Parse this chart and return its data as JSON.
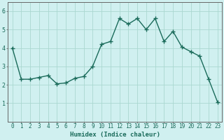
{
  "xlabel": "Humidex (Indice chaleur)",
  "x": [
    0,
    1,
    2,
    3,
    4,
    5,
    6,
    7,
    8,
    9,
    10,
    11,
    12,
    13,
    14,
    15,
    16,
    17,
    18,
    19,
    20,
    21,
    22,
    23
  ],
  "y": [
    4.0,
    2.3,
    2.3,
    2.4,
    2.5,
    2.05,
    2.1,
    2.35,
    2.45,
    3.0,
    4.2,
    4.35,
    5.6,
    5.3,
    5.6,
    5.0,
    5.6,
    4.35,
    4.9,
    4.05,
    3.8,
    3.55,
    2.3,
    1.05
  ],
  "line_color": "#1a6b5a",
  "bg_color": "#d0f0f0",
  "grid_color": "#aad8d0",
  "ylim": [
    0,
    6.5
  ],
  "xlim": [
    -0.5,
    23.5
  ],
  "yticks": [
    1,
    2,
    3,
    4,
    5,
    6
  ],
  "xticks": [
    0,
    1,
    2,
    3,
    4,
    5,
    6,
    7,
    8,
    9,
    10,
    11,
    12,
    13,
    14,
    15,
    16,
    17,
    18,
    19,
    20,
    21,
    22,
    23
  ],
  "tick_fontsize": 5.5,
  "xlabel_fontsize": 6.5,
  "marker_size": 2.0,
  "line_width": 1.0
}
